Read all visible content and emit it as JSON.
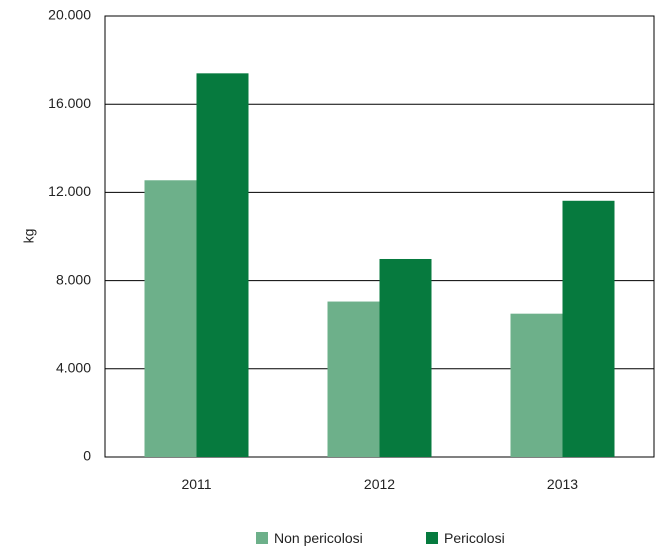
{
  "chart_data": {
    "type": "bar",
    "title": "",
    "xlabel": "",
    "ylabel": "kg",
    "ylim": [
      0,
      20000
    ],
    "yticks": [
      0,
      4000,
      8000,
      12000,
      16000,
      20000
    ],
    "ytick_labels": [
      "0",
      "4.000",
      "8.000",
      "12.000",
      "16.000",
      "20.000"
    ],
    "categories": [
      "2011",
      "2012",
      "2013"
    ],
    "grid": "horizontal",
    "legend_position": "bottom",
    "series": [
      {
        "name": "Non pericolosi",
        "color": "#6db08a",
        "values": [
          12550,
          7050,
          6500
        ]
      },
      {
        "name": "Pericolosi",
        "color": "#067a3e",
        "values": [
          17400,
          8980,
          11620
        ]
      }
    ]
  }
}
